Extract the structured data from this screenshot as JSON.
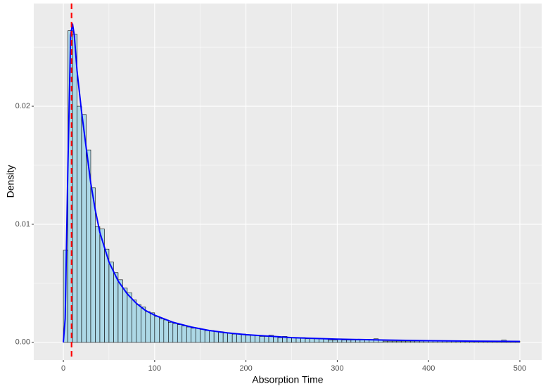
{
  "chart_data": {
    "type": "histogram",
    "x_label": "Absorption Time",
    "y_label": "Density",
    "bins": [
      0,
      5,
      10,
      15,
      20,
      25,
      30,
      35,
      40,
      45,
      50,
      55,
      60,
      65,
      70,
      75,
      80,
      85,
      90,
      95,
      100,
      105,
      110,
      115,
      120,
      125,
      130,
      135,
      140,
      145,
      150,
      155,
      160,
      165,
      170,
      175,
      180,
      185,
      190,
      195,
      200,
      205,
      210,
      215,
      220,
      225,
      230,
      235,
      240,
      245,
      250,
      255,
      260,
      265,
      270,
      275,
      280,
      285,
      290,
      295,
      300,
      305,
      310,
      315,
      320,
      325,
      330,
      335,
      340,
      345,
      350,
      355,
      360,
      365,
      370,
      375,
      380,
      385,
      390,
      395,
      400,
      405,
      410,
      415,
      420,
      425,
      430,
      435,
      440,
      445,
      450,
      455,
      460,
      465,
      470,
      475,
      480,
      485,
      490,
      495,
      500
    ],
    "values": [
      0.0078,
      0.0264,
      0.0261,
      0.02,
      0.0193,
      0.0163,
      0.0131,
      0.0098,
      0.0096,
      0.0079,
      0.0068,
      0.0059,
      0.0053,
      0.0046,
      0.0042,
      0.0036,
      0.0032,
      0.003,
      0.0026,
      0.0025,
      0.0022,
      0.002,
      0.0019,
      0.0017,
      0.0016,
      0.0015,
      0.0014,
      0.0013,
      0.0012,
      0.0012,
      0.0011,
      0.001,
      0.001,
      0.0009,
      0.0009,
      0.0008,
      0.0008,
      0.0007,
      0.0007,
      0.0007,
      0.0006,
      0.0006,
      0.0006,
      0.0005,
      0.0005,
      0.0006,
      0.0005,
      0.0004,
      0.0005,
      0.0004,
      0.0004,
      0.0004,
      0.0004,
      0.0003,
      0.0003,
      0.0003,
      0.0003,
      0.0003,
      0.0002,
      0.0002,
      0.0003,
      0.0002,
      0.0002,
      0.0002,
      0.0002,
      0.0002,
      0.0002,
      0.0002,
      0.0003,
      0.0002,
      0.0001,
      0.0001,
      0.0001,
      0.0001,
      0.0001,
      0.0001,
      0.0001,
      0.0001,
      0.0001,
      0.0001,
      0.0001,
      0.0001,
      0.0001,
      0.0001,
      0.0001,
      0.0001,
      0.0001,
      0.0001,
      0.0001,
      0.0001,
      0.0001,
      0.0001,
      0.0001,
      0.0001,
      0.0001,
      0.0001,
      0.0002,
      0.0001,
      0.0001,
      0.0001
    ],
    "color": "#add8e6",
    "edgecolor": "#000000",
    "density": {
      "color": "#0000ff",
      "x": [
        0,
        2,
        5,
        8,
        10,
        12,
        15,
        20,
        25,
        30,
        35,
        40,
        50,
        60,
        70,
        80,
        90,
        100,
        120,
        140,
        160,
        180,
        200,
        250,
        300,
        350,
        400,
        450,
        500
      ],
      "values": [
        0,
        0.002,
        0.015,
        0.026,
        0.027,
        0.026,
        0.023,
        0.0195,
        0.0165,
        0.0135,
        0.0112,
        0.0093,
        0.0068,
        0.0052,
        0.0041,
        0.0033,
        0.0027,
        0.0023,
        0.0017,
        0.0013,
        0.001,
        0.0008,
        0.00065,
        0.0004,
        0.00027,
        0.0002,
        0.00014,
        0.0001,
        8e-05
      ]
    },
    "vline": {
      "x": 9,
      "color": "#ff0000"
    },
    "xlim": [
      -32.4,
      523.9
    ],
    "ylim": [
      -0.0015,
      0.0287
    ],
    "xticks": [
      0,
      100,
      200,
      300,
      400,
      500
    ],
    "yticks": [
      {
        "value": 0,
        "label": "0.00"
      },
      {
        "value": 0.01,
        "label": "0.01"
      },
      {
        "value": 0.02,
        "label": "0.02"
      }
    ],
    "grid": true
  }
}
